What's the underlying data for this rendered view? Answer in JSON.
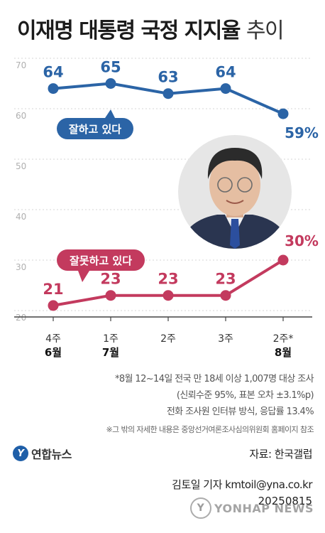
{
  "title": {
    "main": "이재명 대통령 국정 지지율",
    "sub": "추이"
  },
  "chart_data": {
    "type": "line",
    "x_ticks": [
      {
        "week": "4주",
        "month": "6월"
      },
      {
        "week": "1주",
        "month": "7월"
      },
      {
        "week": "2주",
        "month": ""
      },
      {
        "week": "3주",
        "month": ""
      },
      {
        "week": "2주*",
        "month": "8월"
      }
    ],
    "ylim": [
      20,
      70
    ],
    "yticks": [
      20,
      30,
      40,
      50,
      60,
      70
    ],
    "series": [
      {
        "name": "잘하고 있다",
        "color": "#2b64a6",
        "values": [
          64,
          65,
          63,
          64,
          59
        ],
        "labels": [
          "64",
          "65",
          "63",
          "64",
          "59%"
        ]
      },
      {
        "name": "잘못하고 있다",
        "color": "#c33a5e",
        "values": [
          21,
          23,
          23,
          23,
          30
        ],
        "labels": [
          "21",
          "23",
          "23",
          "23",
          "30%"
        ]
      }
    ],
    "grid": true
  },
  "notes": {
    "line1": "*8월 12~14일 전국 만 18세 이상 1,007명 대상 조사",
    "line2": "(신뢰수준 95%, 표본 오차 ±3.1%p)",
    "line3": "전화 조사원 인터뷰 방식, 응답률 13.4%",
    "line4": "※그 밖의 자세한 내용은 중앙선거여론조사심의위원회 홈페이지 참조"
  },
  "brand": {
    "logo_text": "연합뉴스",
    "watermark": "YONHAP NEWS"
  },
  "source": "자료: 한국갤럽",
  "credit": "김토일 기자 kmtoil@yna.co.kr",
  "date": "20250815",
  "photo": {
    "kind": "portrait-photo"
  }
}
